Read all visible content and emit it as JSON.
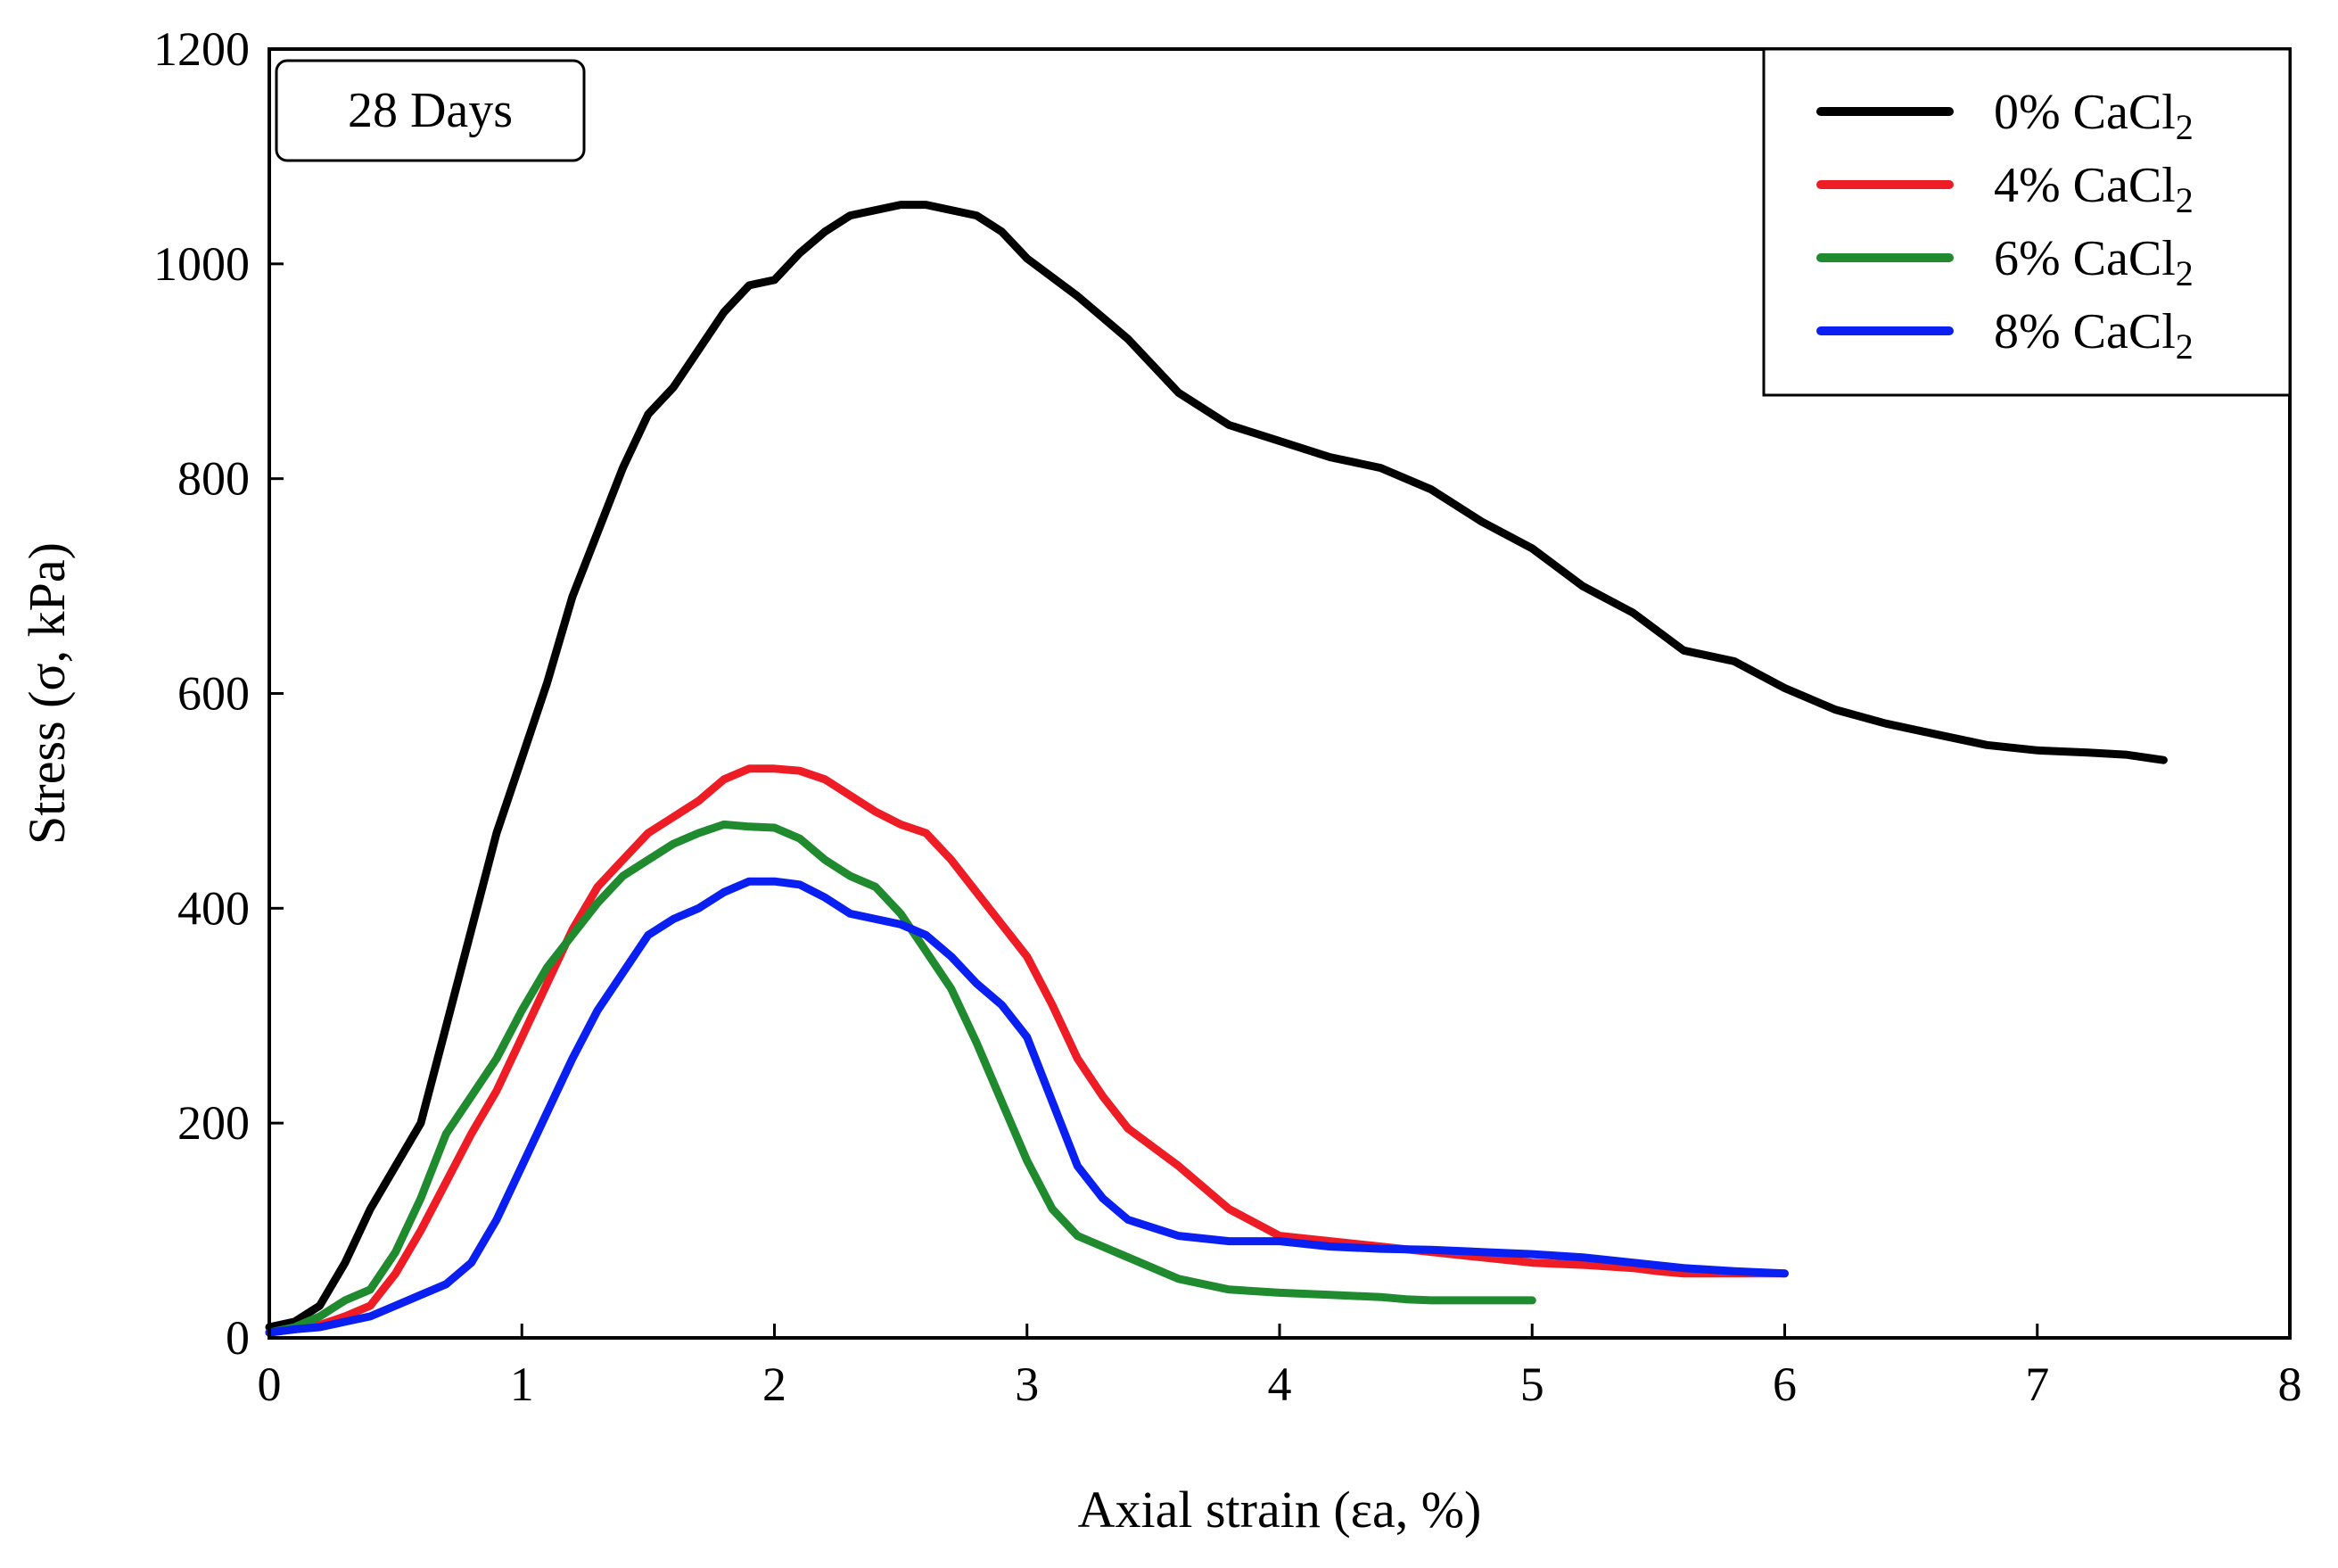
{
  "chart_data": {
    "type": "line",
    "title": "",
    "annotation": "28 Days",
    "xlabel": "Axial strain (εa, %)",
    "ylabel": "Stress (σ, kPa)",
    "xlim": [
      0,
      8
    ],
    "ylim": [
      0,
      1200
    ],
    "xticks": [
      0,
      1,
      2,
      3,
      4,
      5,
      6,
      7,
      8
    ],
    "yticks": [
      0,
      200,
      400,
      600,
      800,
      1000,
      1200
    ],
    "xtick_labels": [
      "0",
      "1",
      "2",
      "3",
      "4",
      "5",
      "6",
      "7",
      "8"
    ],
    "ytick_labels": [
      "0",
      "200",
      "400",
      "600",
      "800",
      "1000",
      "1200"
    ],
    "grid": false,
    "legend_position": "top-right",
    "series": [
      {
        "name": "0% CaCl2",
        "label_main": "0% CaCl",
        "label_sub": "2",
        "color": "#000000",
        "x": [
          0,
          0.1,
          0.2,
          0.3,
          0.4,
          0.5,
          0.6,
          0.7,
          0.8,
          0.9,
          1.0,
          1.1,
          1.2,
          1.3,
          1.4,
          1.5,
          1.6,
          1.7,
          1.8,
          1.9,
          2.0,
          2.1,
          2.2,
          2.3,
          2.4,
          2.5,
          2.6,
          2.7,
          2.8,
          2.9,
          3.0,
          3.2,
          3.4,
          3.6,
          3.8,
          4.0,
          4.2,
          4.4,
          4.6,
          4.8,
          5.0,
          5.2,
          5.4,
          5.6,
          5.8,
          6.0,
          6.2,
          6.4,
          6.6,
          6.8,
          7.0,
          7.2,
          7.35,
          7.5
        ],
        "y": [
          10,
          15,
          30,
          70,
          120,
          160,
          200,
          290,
          380,
          470,
          540,
          610,
          690,
          750,
          810,
          860,
          885,
          920,
          955,
          980,
          985,
          1010,
          1030,
          1045,
          1050,
          1055,
          1055,
          1050,
          1045,
          1030,
          1005,
          970,
          930,
          880,
          850,
          835,
          820,
          810,
          790,
          760,
          735,
          700,
          675,
          640,
          630,
          605,
          585,
          572,
          562,
          552,
          547,
          545,
          543,
          538
        ]
      },
      {
        "name": "4% CaCl2",
        "label_main": "4% CaCl",
        "label_sub": "2",
        "color": "#ee1c24",
        "x": [
          0,
          0.1,
          0.2,
          0.3,
          0.4,
          0.5,
          0.6,
          0.7,
          0.8,
          0.9,
          1.0,
          1.1,
          1.2,
          1.3,
          1.4,
          1.5,
          1.6,
          1.7,
          1.8,
          1.9,
          2.0,
          2.1,
          2.2,
          2.3,
          2.4,
          2.5,
          2.6,
          2.7,
          2.8,
          2.9,
          3.0,
          3.1,
          3.2,
          3.3,
          3.4,
          3.6,
          3.8,
          4.0,
          4.2,
          4.4,
          4.6,
          4.8,
          5.0,
          5.2,
          5.4,
          5.5,
          5.6,
          5.8,
          6.0
        ],
        "y": [
          5,
          8,
          12,
          20,
          30,
          60,
          100,
          145,
          190,
          230,
          280,
          330,
          380,
          420,
          445,
          470,
          485,
          500,
          520,
          530,
          530,
          528,
          520,
          505,
          490,
          478,
          470,
          445,
          415,
          385,
          355,
          310,
          260,
          225,
          195,
          160,
          120,
          95,
          90,
          85,
          80,
          75,
          70,
          68,
          65,
          62,
          60,
          60,
          60
        ]
      },
      {
        "name": "6% CaCl2",
        "label_main": "6% CaCl",
        "label_sub": "2",
        "color": "#1f8a2e",
        "x": [
          0,
          0.1,
          0.2,
          0.3,
          0.4,
          0.5,
          0.6,
          0.7,
          0.8,
          0.9,
          1.0,
          1.1,
          1.2,
          1.3,
          1.4,
          1.5,
          1.6,
          1.7,
          1.8,
          1.9,
          2.0,
          2.1,
          2.2,
          2.3,
          2.4,
          2.5,
          2.6,
          2.7,
          2.8,
          2.9,
          3.0,
          3.1,
          3.2,
          3.4,
          3.6,
          3.8,
          4.0,
          4.2,
          4.4,
          4.5,
          4.6,
          4.8,
          5.0
        ],
        "y": [
          5,
          10,
          20,
          35,
          45,
          80,
          130,
          190,
          225,
          260,
          305,
          345,
          375,
          405,
          430,
          445,
          460,
          470,
          478,
          476,
          475,
          465,
          445,
          430,
          420,
          395,
          360,
          325,
          275,
          220,
          165,
          120,
          95,
          75,
          55,
          45,
          42,
          40,
          38,
          36,
          35,
          35,
          35
        ]
      },
      {
        "name": "8% CaCl2",
        "label_main": "8% CaCl",
        "label_sub": "2",
        "color": "#0a1ff2",
        "x": [
          0,
          0.1,
          0.2,
          0.3,
          0.4,
          0.5,
          0.6,
          0.7,
          0.8,
          0.9,
          1.0,
          1.1,
          1.2,
          1.3,
          1.4,
          1.5,
          1.6,
          1.7,
          1.8,
          1.9,
          2.0,
          2.1,
          2.2,
          2.3,
          2.4,
          2.5,
          2.6,
          2.7,
          2.8,
          2.9,
          3.0,
          3.1,
          3.2,
          3.3,
          3.4,
          3.6,
          3.8,
          4.0,
          4.2,
          4.4,
          4.6,
          4.8,
          5.0,
          5.2,
          5.4,
          5.6,
          5.8,
          6.0
        ],
        "y": [
          5,
          8,
          10,
          15,
          20,
          30,
          40,
          50,
          70,
          110,
          160,
          210,
          260,
          305,
          340,
          375,
          390,
          400,
          415,
          425,
          425,
          422,
          410,
          395,
          390,
          385,
          375,
          355,
          330,
          310,
          280,
          220,
          160,
          130,
          110,
          95,
          90,
          90,
          85,
          83,
          82,
          80,
          78,
          75,
          70,
          65,
          62,
          60
        ]
      }
    ]
  }
}
